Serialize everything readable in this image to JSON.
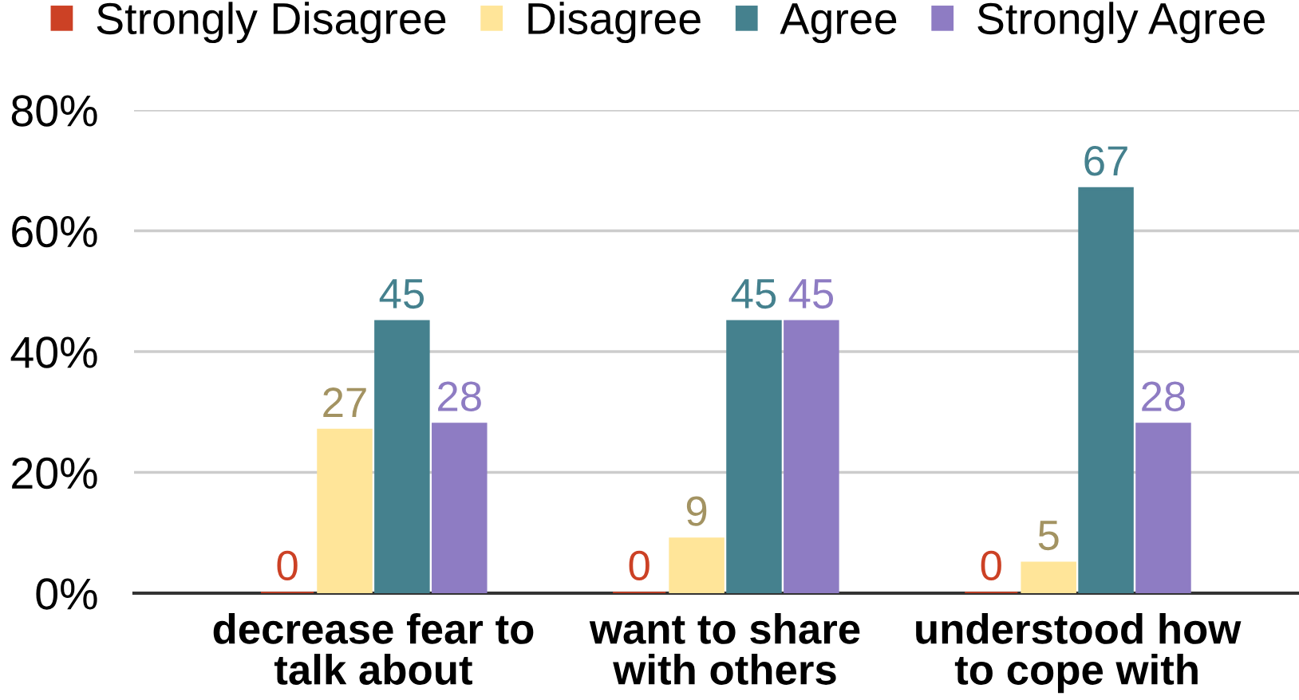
{
  "chart_data": {
    "type": "bar",
    "categories": [
      "decrease fear to\ntalk about",
      "want to share\nwith others",
      "understood how\nto cope with"
    ],
    "series": [
      {
        "name": "Strongly Disagree",
        "color": "#cc4125",
        "values": [
          0,
          0,
          0
        ]
      },
      {
        "name": "Disagree",
        "color": "#ffe599",
        "values": [
          27,
          9,
          5
        ]
      },
      {
        "name": "Agree",
        "color": "#45818e",
        "values": [
          45,
          45,
          67
        ]
      },
      {
        "name": "Strongly Agree",
        "color": "#8e7cc3",
        "values": [
          28,
          45,
          28
        ]
      }
    ],
    "ylim": [
      0,
      80
    ],
    "yticks": [
      {
        "value": 0,
        "label": "0%"
      },
      {
        "value": 20,
        "label": "20%"
      },
      {
        "value": 40,
        "label": "40%"
      },
      {
        "value": 60,
        "label": "60%"
      },
      {
        "value": 80,
        "label": "80%"
      }
    ],
    "grid": "y",
    "legend": "top",
    "data_labels": true
  }
}
